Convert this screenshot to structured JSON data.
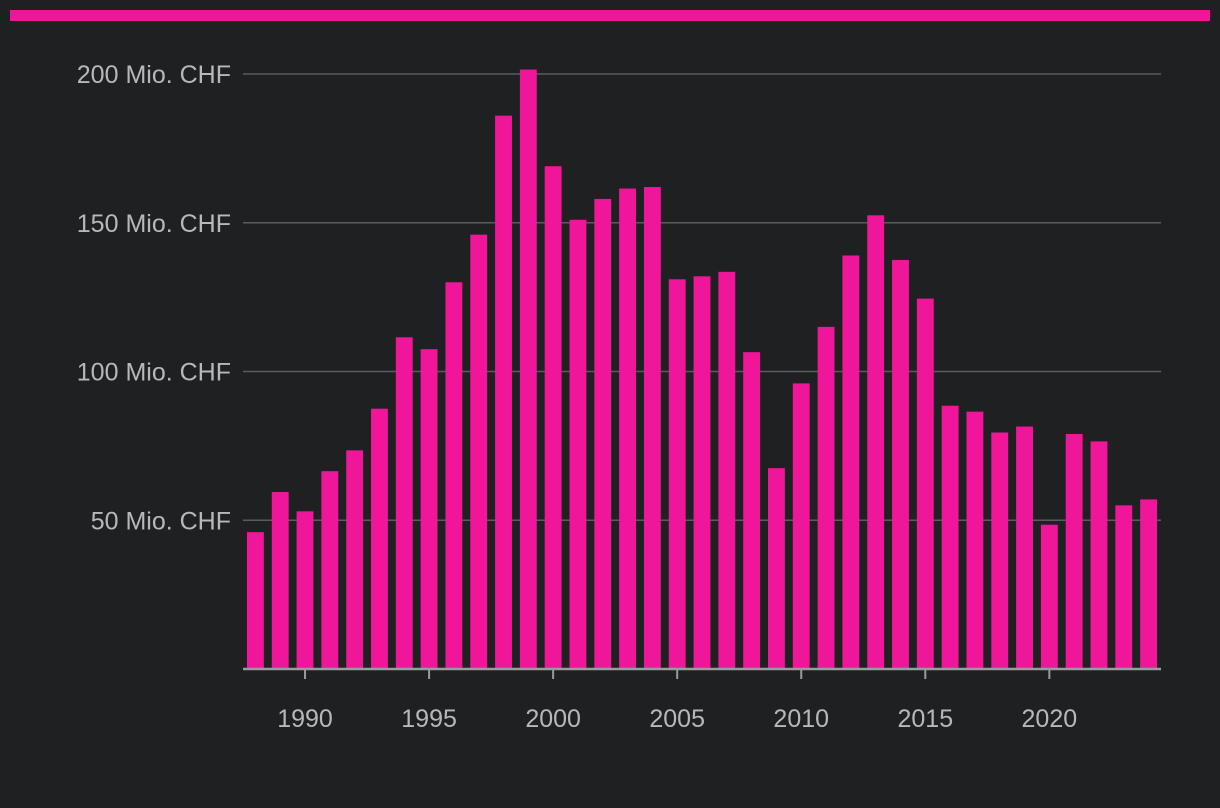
{
  "colors": {
    "background": "#1f2022",
    "bar": "#f0169a",
    "accent_bar": "#f0169a",
    "gridline": "#5a5b5e",
    "axis": "#9a9b9d",
    "label": "#b7b8ba"
  },
  "chart_data": {
    "type": "bar",
    "unit_suffix": "Mio. CHF",
    "x": [
      1988,
      1989,
      1990,
      1991,
      1992,
      1993,
      1994,
      1995,
      1996,
      1997,
      1998,
      1999,
      2000,
      2001,
      2002,
      2003,
      2004,
      2005,
      2006,
      2007,
      2008,
      2009,
      2010,
      2011,
      2012,
      2013,
      2014,
      2015,
      2016,
      2017,
      2018,
      2019,
      2020,
      2021,
      2022,
      2023,
      2024
    ],
    "values": [
      46,
      59.5,
      53,
      66.5,
      73.5,
      87.5,
      111.5,
      107.5,
      130,
      146,
      186,
      201.5,
      169,
      151,
      158,
      161.5,
      162,
      131,
      132,
      133.5,
      106.5,
      67.5,
      96,
      115,
      139,
      152.5,
      137.5,
      124.5,
      88.5,
      86.5,
      79.5,
      81.5,
      48.5,
      79,
      76.5,
      55,
      57
    ],
    "xlim": [
      1987.5,
      2024.5
    ],
    "ylim": [
      0,
      200
    ],
    "yticks": [
      50,
      100,
      150,
      200
    ],
    "ytick_labels": [
      "50 Mio. CHF",
      "100 Mio. CHF",
      "150 Mio. CHF",
      "200 Mio. CHF"
    ],
    "xticks": [
      1990,
      1995,
      2000,
      2005,
      2010,
      2015,
      2020
    ],
    "xtick_labels": [
      "1990",
      "1995",
      "2000",
      "2005",
      "2010",
      "2015",
      "2020"
    ],
    "grid": true,
    "legend": "none"
  }
}
